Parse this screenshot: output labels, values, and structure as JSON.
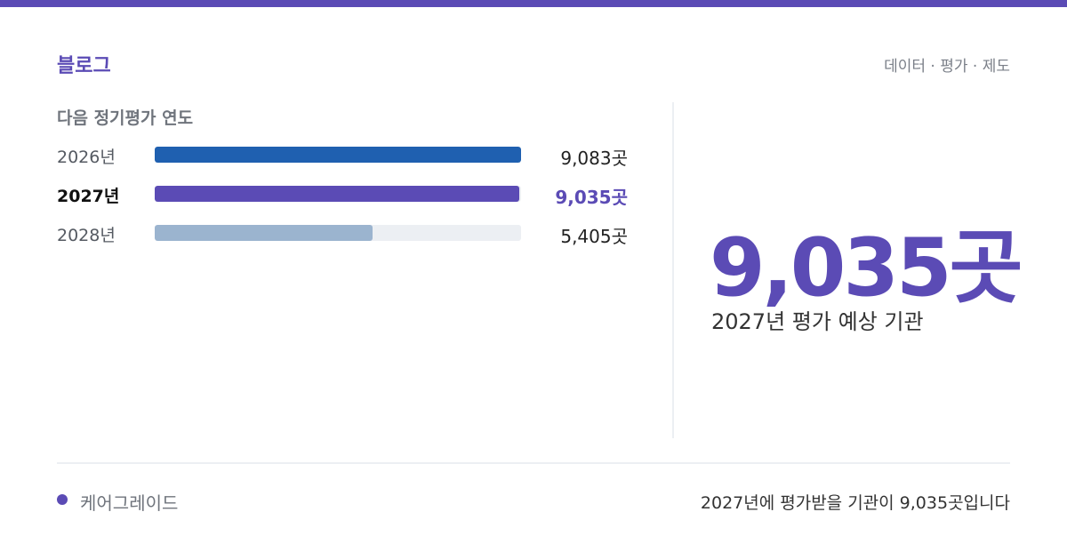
{
  "header": {
    "brand": "블로그",
    "tagline": "데이터 · 평가 · 제도",
    "accent_color": "#5b4bb5"
  },
  "section_title": "다음 정기평가 연도",
  "chart_data": {
    "type": "bar",
    "orientation": "horizontal",
    "xlim": [
      0,
      9083
    ],
    "grid": false,
    "categories": [
      "2026년",
      "2027년",
      "2028년"
    ],
    "values": [
      9083,
      9035,
      5405
    ],
    "value_labels": [
      "9,083곳",
      "9,035곳",
      "5,405곳"
    ],
    "highlight_index": 1,
    "bar_colors": [
      "#1f60b0",
      "#5b4bb5",
      "#9bb4cf"
    ],
    "track_color": "#eceff3"
  },
  "highlight": {
    "value": "9,035곳",
    "caption": "2027년 평가 예상 기관"
  },
  "footer": {
    "left": "케어그레이드",
    "right": "2027년에 평가받을 기관이 9,035곳입니다"
  }
}
